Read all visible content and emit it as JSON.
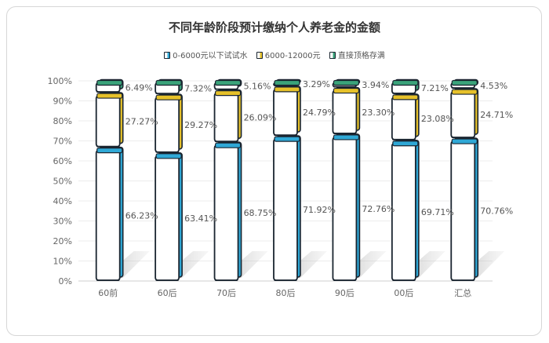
{
  "chart_data": {
    "type": "bar",
    "stacked": true,
    "title": "不同年龄阶段预计缴纳个人养老金的金额",
    "categories": [
      "60前",
      "60后",
      "70后",
      "80后",
      "90后",
      "00后",
      "汇总"
    ],
    "series": [
      {
        "name": "0-6000元以下试试水",
        "color": "#2fa8d6",
        "values": [
          66.23,
          63.41,
          68.75,
          71.92,
          72.76,
          69.71,
          70.76
        ]
      },
      {
        "name": "6000-12000元",
        "color": "#e6c12a",
        "values": [
          27.27,
          29.27,
          26.09,
          24.79,
          23.3,
          23.08,
          24.71
        ]
      },
      {
        "name": "直接顶格存满",
        "color": "#3aa37a",
        "values": [
          6.49,
          7.32,
          5.16,
          3.29,
          3.94,
          7.21,
          4.53
        ]
      }
    ],
    "data_labels": [
      [
        "66.23%",
        "63.41%",
        "68.75%",
        "71.92%",
        "72.76%",
        "69.71%",
        "70.76%"
      ],
      [
        "27.27%",
        "29.27%",
        "26.09%",
        "24.79%",
        "23.30%",
        "23.08%",
        "24.71%"
      ],
      [
        "6.49%",
        "7.32%",
        "5.16%",
        "3.29%",
        "3.94%",
        "7.21%",
        "4.53%"
      ]
    ],
    "ylim": [
      0,
      100
    ],
    "yticks": [
      "0%",
      "10%",
      "20%",
      "30%",
      "40%",
      "50%",
      "60%",
      "70%",
      "80%",
      "90%",
      "100%"
    ],
    "legend_position": "top-center",
    "grid": true
  }
}
